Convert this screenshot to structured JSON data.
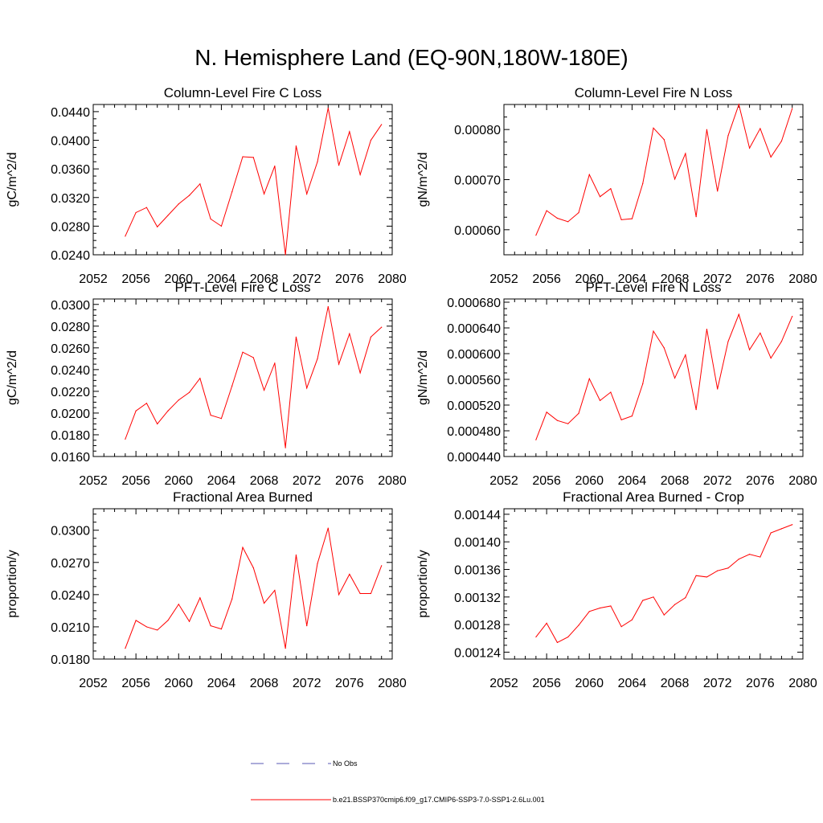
{
  "title": "N. Hemisphere Land (EQ-90N,180W-180E)",
  "legend": {
    "items": [
      {
        "label": "No Obs",
        "color": "#5a5ab4",
        "dash": true
      },
      {
        "label": "b.e21.BSSP370cmip6.f09_g17.CMIP6-SSP3-7.0-SSP1-2.6Lu.001",
        "color": "#ff0000",
        "dash": false
      }
    ]
  },
  "chart_data": [
    {
      "type": "line",
      "title": "Column-Level Fire C Loss",
      "ylabel": "gC/m^2/d",
      "xlim": [
        2052,
        2080
      ],
      "ylim": [
        0.024,
        0.045
      ],
      "xticks": [
        "2052",
        "2056",
        "2060",
        "2064",
        "2068",
        "2072",
        "2076",
        "2080"
      ],
      "yticks": [
        "0.0240",
        "0.0280",
        "0.0320",
        "0.0360",
        "0.0400",
        "0.0440"
      ],
      "x": [
        2055,
        2056,
        2057,
        2058,
        2059,
        2060,
        2061,
        2062,
        2063,
        2064,
        2065,
        2066,
        2067,
        2068,
        2069,
        2070,
        2071,
        2072,
        2073,
        2074,
        2075,
        2076,
        2077,
        2078,
        2079
      ],
      "series": [
        {
          "color": "#ff0000",
          "values": [
            0.0266,
            0.0299,
            0.0306,
            0.0279,
            0.0295,
            0.0311,
            0.0323,
            0.0339,
            0.029,
            0.028,
            0.0328,
            0.0377,
            0.0376,
            0.0325,
            0.0364,
            0.024,
            0.0392,
            0.0325,
            0.037,
            0.0445,
            0.0365,
            0.0412,
            0.0352,
            0.04,
            0.0422
          ]
        }
      ]
    },
    {
      "type": "line",
      "title": "Column-Level Fire N Loss",
      "ylabel": "gN/m^2/d",
      "xlim": [
        2052,
        2080
      ],
      "ylim": [
        0.00055,
        0.00085
      ],
      "xticks": [
        "2052",
        "2056",
        "2060",
        "2064",
        "2068",
        "2072",
        "2076",
        "2080"
      ],
      "yticks": [
        "0.00060",
        "0.00070",
        "0.00080"
      ],
      "x": [
        2055,
        2056,
        2057,
        2058,
        2059,
        2060,
        2061,
        2062,
        2063,
        2064,
        2065,
        2066,
        2067,
        2068,
        2069,
        2070,
        2071,
        2072,
        2073,
        2074,
        2075,
        2076,
        2077,
        2078,
        2079
      ],
      "series": [
        {
          "color": "#ff0000",
          "values": [
            0.000589,
            0.000638,
            0.000623,
            0.000616,
            0.000634,
            0.00071,
            0.000666,
            0.000682,
            0.00062,
            0.000622,
            0.000692,
            0.000803,
            0.00078,
            0.000701,
            0.000752,
            0.000626,
            0.0008,
            0.000677,
            0.000788,
            0.00085,
            0.000763,
            0.000802,
            0.000745,
            0.000777,
            0.000842
          ]
        }
      ]
    },
    {
      "type": "line",
      "title": "PFT-Level Fire C Loss",
      "ylabel": "gC/m^2/d",
      "xlim": [
        2052,
        2080
      ],
      "ylim": [
        0.016,
        0.0305
      ],
      "xticks": [
        "2052",
        "2056",
        "2060",
        "2064",
        "2068",
        "2072",
        "2076",
        "2080"
      ],
      "yticks": [
        "0.0160",
        "0.0180",
        "0.0200",
        "0.0220",
        "0.0240",
        "0.0260",
        "0.0280",
        "0.0300"
      ],
      "x": [
        2055,
        2056,
        2057,
        2058,
        2059,
        2060,
        2061,
        2062,
        2063,
        2064,
        2065,
        2066,
        2067,
        2068,
        2069,
        2070,
        2071,
        2072,
        2073,
        2074,
        2075,
        2076,
        2077,
        2078,
        2079
      ],
      "series": [
        {
          "color": "#ff0000",
          "values": [
            0.0176,
            0.0202,
            0.0209,
            0.019,
            0.0202,
            0.0212,
            0.0219,
            0.0232,
            0.0198,
            0.0195,
            0.0225,
            0.0256,
            0.0251,
            0.0221,
            0.0246,
            0.0168,
            0.027,
            0.0223,
            0.025,
            0.0298,
            0.0245,
            0.0273,
            0.0237,
            0.027,
            0.0279
          ]
        }
      ]
    },
    {
      "type": "line",
      "title": "PFT-Level Fire N Loss",
      "ylabel": "gN/m^2/d",
      "xlim": [
        2052,
        2080
      ],
      "ylim": [
        0.00044,
        0.000685
      ],
      "xticks": [
        "2052",
        "2056",
        "2060",
        "2064",
        "2068",
        "2072",
        "2076",
        "2080"
      ],
      "yticks": [
        "0.000440",
        "0.000480",
        "0.000520",
        "0.000560",
        "0.000600",
        "0.000640",
        "0.000680"
      ],
      "x": [
        2055,
        2056,
        2057,
        2058,
        2059,
        2060,
        2061,
        2062,
        2063,
        2064,
        2065,
        2066,
        2067,
        2068,
        2069,
        2070,
        2071,
        2072,
        2073,
        2074,
        2075,
        2076,
        2077,
        2078,
        2079
      ],
      "series": [
        {
          "color": "#ff0000",
          "values": [
            0.000466,
            0.000509,
            0.000496,
            0.000491,
            0.000507,
            0.000561,
            0.000527,
            0.00054,
            0.000497,
            0.000503,
            0.000553,
            0.000635,
            0.000609,
            0.000562,
            0.000598,
            0.000513,
            0.000638,
            0.000545,
            0.000619,
            0.000661,
            0.000606,
            0.000632,
            0.000593,
            0.000619,
            0.000658
          ]
        }
      ]
    },
    {
      "type": "line",
      "title": "Fractional Area Burned",
      "ylabel": "proportion/y",
      "xlim": [
        2052,
        2080
      ],
      "ylim": [
        0.018,
        0.032
      ],
      "xticks": [
        "2052",
        "2056",
        "2060",
        "2064",
        "2068",
        "2072",
        "2076",
        "2080"
      ],
      "yticks": [
        "0.0180",
        "0.0210",
        "0.0240",
        "0.0270",
        "0.0300"
      ],
      "x": [
        2055,
        2056,
        2057,
        2058,
        2059,
        2060,
        2061,
        2062,
        2063,
        2064,
        2065,
        2066,
        2067,
        2068,
        2069,
        2070,
        2071,
        2072,
        2073,
        2074,
        2075,
        2076,
        2077,
        2078,
        2079
      ],
      "series": [
        {
          "color": "#ff0000",
          "values": [
            0.019,
            0.0216,
            0.021,
            0.0207,
            0.0216,
            0.0231,
            0.0215,
            0.0237,
            0.0211,
            0.0208,
            0.0236,
            0.0284,
            0.0265,
            0.0232,
            0.0244,
            0.019,
            0.0277,
            0.0211,
            0.0269,
            0.0302,
            0.024,
            0.0259,
            0.0241,
            0.0241,
            0.0267
          ]
        }
      ]
    },
    {
      "type": "line",
      "title": "Fractional Area Burned - Crop",
      "ylabel": "proportion/y",
      "xlim": [
        2052,
        2080
      ],
      "ylim": [
        0.00123,
        0.001448
      ],
      "xticks": [
        "2052",
        "2056",
        "2060",
        "2064",
        "2068",
        "2072",
        "2076",
        "2080"
      ],
      "yticks": [
        "0.00124",
        "0.00128",
        "0.00132",
        "0.00136",
        "0.00140",
        "0.00144"
      ],
      "x": [
        2055,
        2056,
        2057,
        2058,
        2059,
        2060,
        2061,
        2062,
        2063,
        2064,
        2065,
        2066,
        2067,
        2068,
        2069,
        2070,
        2071,
        2072,
        2073,
        2074,
        2075,
        2076,
        2077,
        2078,
        2079
      ],
      "series": [
        {
          "color": "#ff0000",
          "values": [
            0.001262,
            0.001282,
            0.001254,
            0.001262,
            0.001279,
            0.001299,
            0.001304,
            0.001307,
            0.001277,
            0.001287,
            0.001315,
            0.00132,
            0.001294,
            0.001309,
            0.001319,
            0.001351,
            0.001349,
            0.001358,
            0.001362,
            0.001375,
            0.001382,
            0.001378,
            0.001413,
            0.001419,
            0.001425
          ]
        }
      ]
    }
  ]
}
